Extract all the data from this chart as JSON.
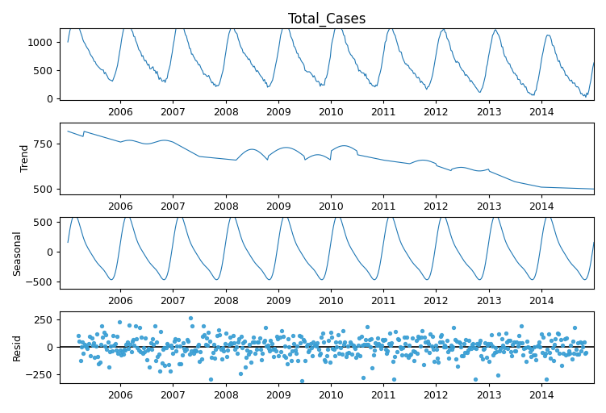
{
  "title": "Total_Cases",
  "line_color": "#1f77b4",
  "resid_color": "#3a9fd4",
  "bg_color": "white",
  "ylabel_trend": "Trend",
  "ylabel_seasonal": "Seasonal",
  "ylabel_resid": "Resid",
  "xlim_start": 2004.85,
  "xlim_end": 2015.0,
  "x_ticks": [
    2006,
    2007,
    2008,
    2009,
    2010,
    2011,
    2012,
    2013,
    2014
  ],
  "observed_ylim": [
    -30,
    1250
  ],
  "observed_yticks": [
    0,
    500,
    1000
  ],
  "trend_ylim": [
    470,
    870
  ],
  "trend_yticks": [
    500,
    750
  ],
  "seasonal_ylim": [
    -620,
    580
  ],
  "seasonal_yticks": [
    -500,
    0,
    500
  ],
  "resid_ylim": [
    -330,
    330
  ],
  "resid_yticks": [
    -250,
    0,
    250
  ],
  "n_years": 10,
  "period": 52,
  "seed": 42,
  "figsize": [
    7.51,
    5.12
  ],
  "dpi": 100
}
